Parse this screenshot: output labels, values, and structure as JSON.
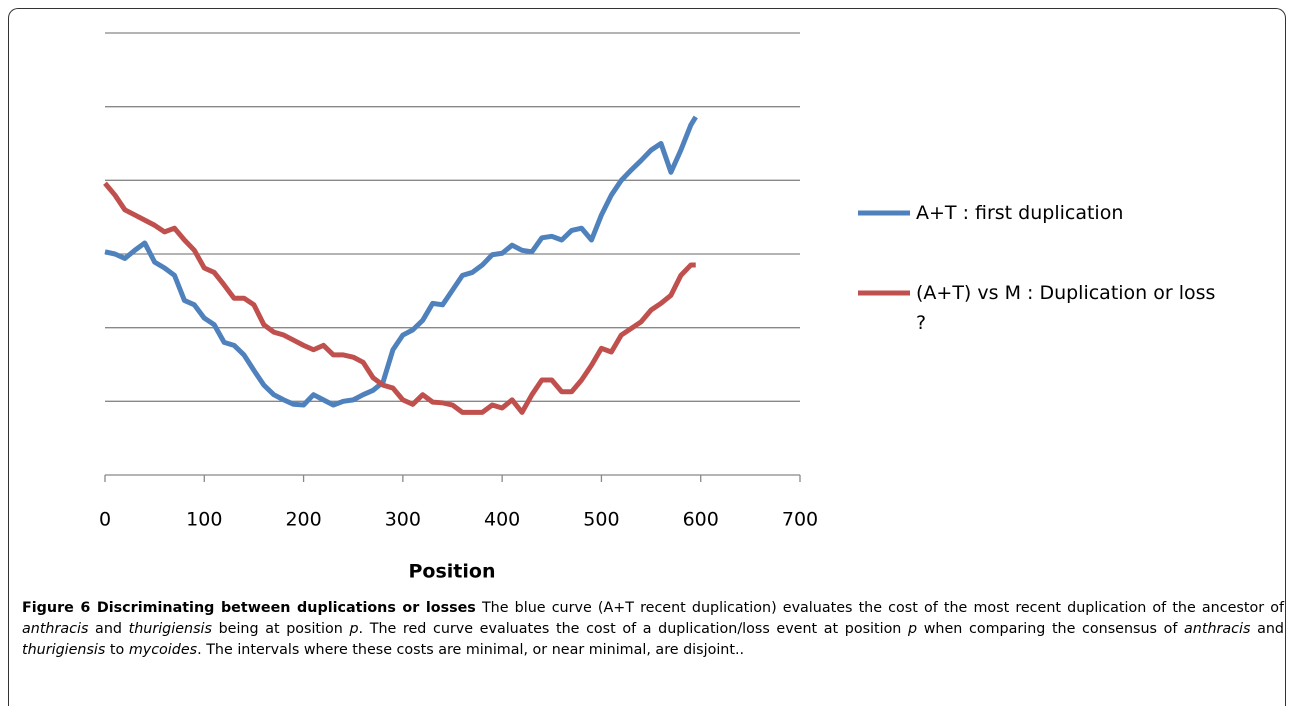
{
  "chart_data": {
    "type": "line",
    "x_label": "Position",
    "xlim": [
      0,
      700
    ],
    "xticks": [
      0,
      100,
      200,
      300,
      400,
      500,
      600,
      700
    ],
    "ylim": [
      0,
      6
    ],
    "yticks": [
      0,
      1,
      2,
      3,
      4,
      5,
      6
    ],
    "grid": true,
    "x": [
      0,
      10,
      20,
      30,
      40,
      50,
      60,
      70,
      80,
      90,
      100,
      110,
      120,
      130,
      140,
      150,
      160,
      170,
      180,
      190,
      200,
      210,
      220,
      230,
      240,
      250,
      260,
      270,
      280,
      290,
      300,
      310,
      320,
      330,
      340,
      350,
      360,
      370,
      380,
      390,
      400,
      410,
      420,
      430,
      440,
      450,
      460,
      470,
      480,
      490,
      500,
      510,
      520,
      530,
      540,
      550,
      560,
      570,
      580,
      590,
      595
    ],
    "series": [
      {
        "name": "A+T : first duplication",
        "color": "#4f81bd",
        "values": [
          3.03,
          3.0,
          2.94,
          3.05,
          3.15,
          2.89,
          2.81,
          2.71,
          2.37,
          2.31,
          2.13,
          2.04,
          1.8,
          1.76,
          1.63,
          1.42,
          1.22,
          1.09,
          1.02,
          0.96,
          0.95,
          1.09,
          1.02,
          0.95,
          1.0,
          1.02,
          1.09,
          1.15,
          1.26,
          1.7,
          1.9,
          1.97,
          2.1,
          2.33,
          2.31,
          2.51,
          2.71,
          2.75,
          2.85,
          2.99,
          3.01,
          3.12,
          3.05,
          3.03,
          3.22,
          3.24,
          3.19,
          3.32,
          3.35,
          3.19,
          3.53,
          3.8,
          4.0,
          4.14,
          4.27,
          4.41,
          4.5,
          4.11,
          4.41,
          4.75,
          4.86
        ]
      },
      {
        "name": "(A+T) vs M : Duplication or loss ?",
        "color": "#c0504d",
        "values": [
          3.96,
          3.8,
          3.6,
          3.53,
          3.46,
          3.39,
          3.3,
          3.35,
          3.19,
          3.05,
          2.81,
          2.75,
          2.58,
          2.4,
          2.4,
          2.31,
          2.04,
          1.94,
          1.9,
          1.83,
          1.76,
          1.7,
          1.76,
          1.63,
          1.63,
          1.6,
          1.53,
          1.32,
          1.22,
          1.18,
          1.02,
          0.96,
          1.09,
          0.99,
          0.98,
          0.95,
          0.85,
          0.85,
          0.85,
          0.95,
          0.91,
          1.02,
          0.85,
          1.09,
          1.29,
          1.29,
          1.13,
          1.13,
          1.29,
          1.49,
          1.72,
          1.67,
          1.9,
          1.99,
          2.08,
          2.24,
          2.33,
          2.44,
          2.71,
          2.85,
          2.85
        ]
      }
    ]
  },
  "caption": {
    "title": "Figure 6 Discriminating between duplications or losses",
    "parts": [
      {
        "text": " The blue curve (A+T recent duplication) evaluates the cost of the most recent duplication of the ancestor of "
      },
      {
        "text": "anthracis",
        "italic": true
      },
      {
        "text": " and "
      },
      {
        "text": "thurigiensis",
        "italic": true
      },
      {
        "text": " being at position "
      },
      {
        "text": "p",
        "italic": true
      },
      {
        "text": ". The red curve evaluates the cost of a duplication/loss event at position "
      },
      {
        "text": "p",
        "italic": true
      },
      {
        "text": " when comparing the consensus of "
      },
      {
        "text": "anthracis",
        "italic": true
      },
      {
        "text": " and "
      },
      {
        "text": "thurigiensis",
        "italic": true
      },
      {
        "text": " to "
      },
      {
        "text": "mycoides",
        "italic": true
      },
      {
        "text": ". The intervals where these costs are minimal, or near minimal, are disjoint.."
      }
    ]
  }
}
